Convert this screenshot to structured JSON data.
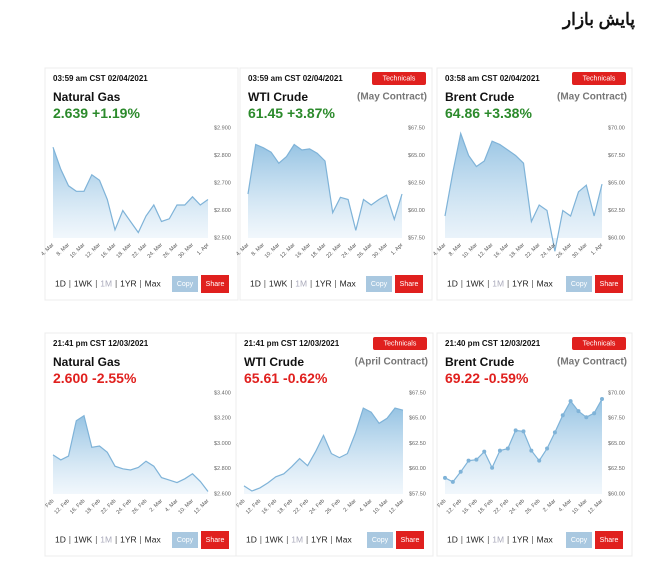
{
  "header": {
    "title": "پایش بازار"
  },
  "controls": {
    "ranges": [
      "1D",
      "1WK",
      "1M",
      "1YR",
      "Max"
    ],
    "active": 2,
    "copy": "Copy",
    "share": "Share"
  },
  "chart_data": [
    {
      "type": "area",
      "timestamp": "03:59 am CST 02/04/2021",
      "title": "Natural Gas",
      "price": "2.639",
      "change": "+1.19%",
      "color": "#2b8a2b",
      "line_color": "#7fb3d8",
      "categories": [
        "4. Mar",
        null,
        "8. Mar",
        null,
        "10. Mar",
        null,
        "12. Mar",
        null,
        "16. Mar",
        null,
        "18. Mar",
        null,
        "22. Mar",
        null,
        "24. Mar",
        null,
        "26. Mar",
        null,
        "30. Mar",
        null,
        "1. Apr"
      ],
      "values": [
        2.83,
        2.75,
        2.69,
        2.67,
        2.67,
        2.73,
        2.71,
        2.64,
        2.53,
        2.6,
        2.56,
        2.52,
        2.58,
        2.62,
        2.56,
        2.57,
        2.62,
        2.62,
        2.65,
        2.62,
        2.64
      ],
      "ylim": [
        2.5,
        2.9
      ],
      "yticks": [
        {
          "value": 2.5,
          "label": "$2.500"
        },
        {
          "value": 2.6,
          "label": "$2.600"
        },
        {
          "value": 2.7,
          "label": "$2.700"
        },
        {
          "value": 2.8,
          "label": "$2.800"
        },
        {
          "value": 2.9,
          "label": "$2.900"
        }
      ]
    },
    {
      "type": "area",
      "timestamp": "03:59 am CST 02/04/2021",
      "title": "WTI Crude",
      "price": "61.45",
      "change": "+3.87%",
      "button": "Technicals",
      "contract": "(May Contract)",
      "color": "#2b8a2b",
      "line_color": "#7fb3d8",
      "categories": [
        "4. Mar",
        null,
        "8. Mar",
        null,
        "10. Mar",
        null,
        "12. Mar",
        null,
        "16. Mar",
        null,
        "18. Mar",
        null,
        "22. Mar",
        null,
        "24. Mar",
        null,
        "26. Mar",
        null,
        "30. Mar",
        null,
        "1. Apr"
      ],
      "values": [
        61.5,
        66.0,
        65.7,
        65.3,
        64.3,
        64.9,
        66.0,
        65.5,
        65.6,
        65.2,
        64.5,
        59.8,
        61.2,
        61.0,
        58.2,
        61.0,
        60.5,
        61.0,
        61.4,
        59.2,
        61.5
      ],
      "ylim": [
        57.5,
        67.5
      ],
      "yticks": [
        {
          "value": 57.5,
          "label": "$57.50"
        },
        {
          "value": 60,
          "label": "$60.00"
        },
        {
          "value": 62.5,
          "label": "$62.50"
        },
        {
          "value": 65,
          "label": "$65.00"
        },
        {
          "value": 67.5,
          "label": "$67.50"
        }
      ]
    },
    {
      "type": "area",
      "timestamp": "03:58 am CST 02/04/2021",
      "title": "Brent Crude",
      "price": "64.86",
      "change": "+3.38%",
      "button": "Technicals",
      "contract": "(May Contract)",
      "color": "#2b8a2b",
      "line_color": "#7fb3d8",
      "categories": [
        "4. Mar",
        null,
        "8. Mar",
        null,
        "10. Mar",
        null,
        "12. Mar",
        null,
        "16. Mar",
        null,
        "18. Mar",
        null,
        "22. Mar",
        null,
        "24. Mar",
        null,
        "26. Mar",
        null,
        "30. Mar",
        null,
        "1. Apr"
      ],
      "values": [
        62.0,
        66.0,
        69.5,
        67.5,
        66.5,
        67.0,
        68.8,
        68.5,
        68.0,
        67.5,
        66.8,
        61.5,
        63.0,
        62.5,
        58.8,
        62.5,
        62.0,
        64.2,
        64.8,
        62.0,
        64.9
      ],
      "ylim": [
        60,
        70
      ],
      "yticks": [
        {
          "value": 60,
          "label": "$60.00"
        },
        {
          "value": 62.5,
          "label": "$62.50"
        },
        {
          "value": 65,
          "label": "$65.00"
        },
        {
          "value": 67.5,
          "label": "$67.50"
        },
        {
          "value": 70,
          "label": "$70.00"
        }
      ]
    },
    {
      "type": "area",
      "timestamp": "21:41 pm CST 12/03/2021",
      "title": "Natural Gas",
      "price": "2.600",
      "change": "-2.55%",
      "color": "#e0201e",
      "line_color": "#7fb3d8",
      "categories": [
        "Feb",
        null,
        "12. Feb",
        null,
        "16. Feb",
        null,
        "18. Feb",
        null,
        "22. Feb",
        null,
        "24. Feb",
        null,
        "26. Feb",
        null,
        "2. Mar",
        null,
        "4. Mar",
        null,
        "10. Mar",
        null,
        "12. Mar"
      ],
      "values": [
        2.91,
        2.87,
        2.9,
        3.18,
        3.22,
        2.97,
        2.98,
        2.93,
        2.82,
        2.8,
        2.79,
        2.81,
        2.86,
        2.82,
        2.73,
        2.71,
        2.69,
        2.72,
        2.76,
        2.7,
        2.62
      ],
      "ylim": [
        2.6,
        3.4
      ],
      "yticks": [
        {
          "value": 2.6,
          "label": "$2.600"
        },
        {
          "value": 2.8,
          "label": "$2.800"
        },
        {
          "value": 3.0,
          "label": "$3.000"
        },
        {
          "value": 3.2,
          "label": "$3.200"
        },
        {
          "value": 3.4,
          "label": "$3.400"
        }
      ]
    },
    {
      "type": "area",
      "timestamp": "21:41 pm CST 12/03/2021",
      "title": "WTI Crude",
      "price": "65.61",
      "change": "-0.62%",
      "button": "Technicals",
      "contract": "(April Contract)",
      "color": "#e0201e",
      "line_color": "#7fb3d8",
      "categories": [
        "Feb",
        null,
        "12. Feb",
        null,
        "16. Feb",
        null,
        "18. Feb",
        null,
        "22. Feb",
        null,
        "24. Feb",
        null,
        "26. Feb",
        null,
        "2. Mar",
        null,
        "4. Mar",
        null,
        "10. Mar",
        null,
        "12. Mar"
      ],
      "values": [
        58.3,
        57.8,
        58.1,
        58.6,
        59.2,
        59.5,
        60.2,
        61.0,
        60.3,
        61.7,
        63.3,
        61.5,
        61.1,
        61.5,
        63.5,
        66.0,
        65.6,
        64.5,
        65.0,
        66.0,
        65.8
      ],
      "ylim": [
        57.5,
        67.5
      ],
      "yticks": [
        {
          "value": 57.5,
          "label": "$57.50"
        },
        {
          "value": 60,
          "label": "$60.00"
        },
        {
          "value": 62.5,
          "label": "$62.50"
        },
        {
          "value": 65,
          "label": "$65.00"
        },
        {
          "value": 67.5,
          "label": "$67.50"
        }
      ]
    },
    {
      "type": "area",
      "timestamp": "21:40 pm CST 12/03/2021",
      "title": "Brent Crude",
      "price": "69.22",
      "change": "-0.59%",
      "button": "Technicals",
      "contract": "(May Contract)",
      "color": "#e0201e",
      "line_color": "#7fb3d8",
      "markers": true,
      "categories": [
        "Feb",
        null,
        "12. Feb",
        null,
        "16. Feb",
        null,
        "18. Feb",
        null,
        "22. Feb",
        null,
        "24. Feb",
        null,
        "26. Feb",
        null,
        "2. Mar",
        null,
        "4. Mar",
        null,
        "10. Mar",
        null,
        "12. Mar"
      ],
      "values": [
        61.6,
        61.2,
        62.2,
        63.3,
        63.4,
        64.2,
        62.6,
        64.3,
        64.5,
        66.3,
        66.2,
        64.3,
        63.3,
        64.5,
        66.1,
        67.8,
        69.2,
        68.2,
        67.6,
        68.0,
        69.4
      ],
      "ylim": [
        60,
        70
      ],
      "yticks": [
        {
          "value": 60,
          "label": "$60.00"
        },
        {
          "value": 62.5,
          "label": "$62.50"
        },
        {
          "value": 65,
          "label": "$65.00"
        },
        {
          "value": 67.5,
          "label": "$67.50"
        },
        {
          "value": 70,
          "label": "$70.00"
        }
      ]
    }
  ]
}
